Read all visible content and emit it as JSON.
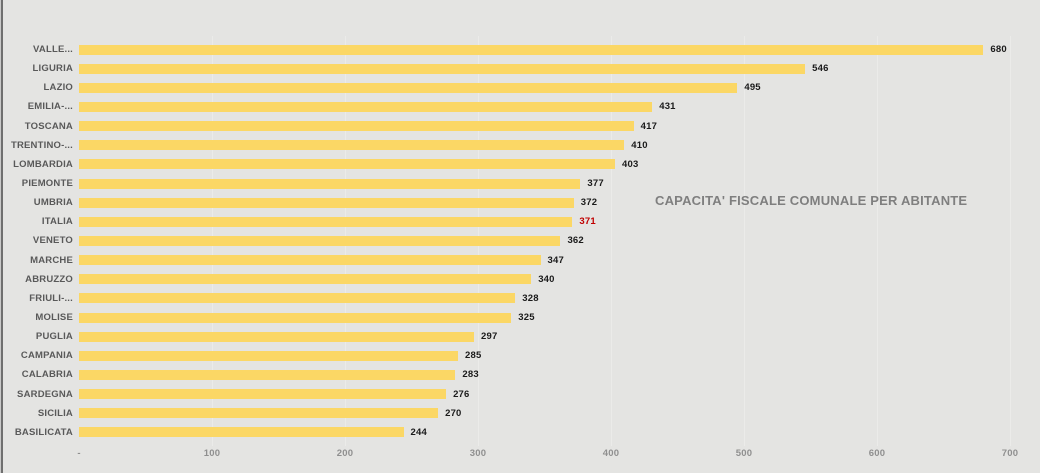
{
  "window": {
    "background": "#e4e4e2",
    "left_edge_dark": "#6f6f6f",
    "left_edge_light": "#c9c9c9"
  },
  "chart_data": {
    "type": "bar",
    "orientation": "horizontal",
    "title": "CAPACITA' FISCALE COMUNALE PER ABITANTE",
    "categories": [
      "VALLE...",
      "LIGURIA",
      "LAZIO",
      "EMILIA-...",
      "TOSCANA",
      "TRENTINO-...",
      "LOMBARDIA",
      "PIEMONTE",
      "UMBRIA",
      "ITALIA",
      "VENETO",
      "MARCHE",
      "ABRUZZO",
      "FRIULI-...",
      "MOLISE",
      "PUGLIA",
      "CAMPANIA",
      "CALABRIA",
      "SARDEGNA",
      "SICILIA",
      "BASILICATA"
    ],
    "values": [
      680,
      546,
      495,
      431,
      417,
      410,
      403,
      377,
      372,
      371,
      362,
      347,
      340,
      328,
      325,
      297,
      285,
      283,
      276,
      270,
      244
    ],
    "value_labels": [
      "680",
      "546",
      "495",
      "431",
      "417",
      "410",
      "403",
      "377",
      "372",
      "371",
      "362",
      "347",
      "340",
      "328",
      "325",
      "297",
      "285",
      "283",
      "276",
      "270",
      "244"
    ],
    "highlight_category": "ITALIA",
    "highlight_index": 9,
    "xlim": [
      0,
      700
    ],
    "x_ticks": [
      {
        "label": "-",
        "value": 0
      },
      {
        "label": "100",
        "value": 100
      },
      {
        "label": "200",
        "value": 200
      },
      {
        "label": "300",
        "value": 300
      },
      {
        "label": "400",
        "value": 400
      },
      {
        "label": "500",
        "value": 500
      },
      {
        "label": "600",
        "value": 600
      },
      {
        "label": "700",
        "value": 700
      }
    ],
    "grid": true,
    "legend": "none",
    "colors": {
      "bar": "#fbd765",
      "value_label": "#1a1a1a",
      "highlight_value_label": "#c00000",
      "category_label": "#595959",
      "axis_tick_label": "#8f8f8f",
      "title": "#7f7f7f",
      "gridline": "#ebebe9"
    }
  }
}
